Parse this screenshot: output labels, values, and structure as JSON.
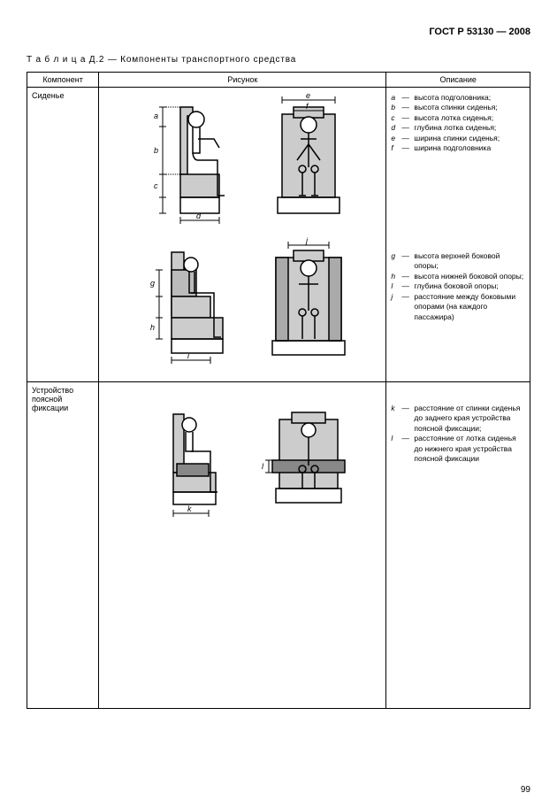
{
  "header": "ГОСТ Р 53130 — 2008",
  "caption_prefix": "Т а б л и ц а  Д.2 — ",
  "caption": "Компоненты транспортного средства",
  "columns": {
    "component": "Компонент",
    "figure": "Рисунок",
    "description": "Описание"
  },
  "page_number": "99",
  "rows": [
    {
      "component": "Сиденье",
      "desc_groups": [
        [
          {
            "k": "a",
            "t": "высота подголовника;"
          },
          {
            "k": "b",
            "t": "высота спинки сиденья;"
          },
          {
            "k": "c",
            "t": "высота лотка сиденья;"
          },
          {
            "k": "d",
            "t": "глубина лотка сиденья;"
          },
          {
            "k": "e",
            "t": "ширина спинки сиденья;"
          },
          {
            "k": "f",
            "t": "ширина подголовника"
          }
        ],
        [
          {
            "k": "g",
            "t": "высота верхней боковой опоры;"
          },
          {
            "k": "h",
            "t": "высота нижней боковой опоры;"
          },
          {
            "k": "l",
            "t": "глубина боковой опоры;"
          },
          {
            "k": "j",
            "t": "расстояние между боко­выми опорами (на каж­дого пассажира)"
          }
        ]
      ]
    },
    {
      "component": "Устройство поясной фиксации",
      "desc_groups": [
        [
          {
            "k": "k",
            "t": "расстояние от спинки сиденья до заднего края устройства поясной фик­сации;"
          },
          {
            "k": "l",
            "t": "расстояние от лотка си­денья до нижнего края устройства поясной фик­сации"
          }
        ]
      ]
    }
  ],
  "svg_labels": {
    "a": "a",
    "b": "b",
    "c": "c",
    "d": "d",
    "e": "e",
    "f": "f",
    "g": "g",
    "h": "h",
    "i": "i",
    "j": "j",
    "k": "k",
    "l": "l"
  }
}
